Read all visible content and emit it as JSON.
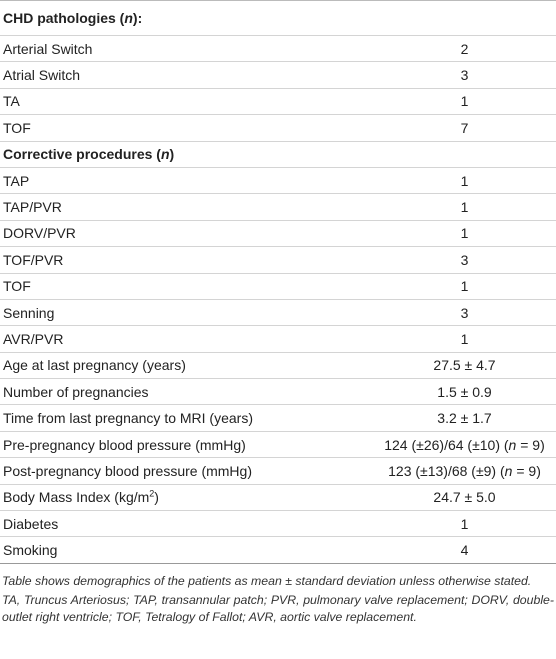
{
  "table": {
    "rows": [
      {
        "label": [
          {
            "text": "CHD pathologies ("
          },
          {
            "text": "n",
            "style": "italic"
          },
          {
            "text": "):"
          }
        ],
        "value": [],
        "heading": true
      },
      {
        "label": [
          {
            "text": "Arterial Switch"
          }
        ],
        "value": [
          {
            "text": "2"
          }
        ]
      },
      {
        "label": [
          {
            "text": "Atrial Switch"
          }
        ],
        "value": [
          {
            "text": "3"
          }
        ]
      },
      {
        "label": [
          {
            "text": "TA"
          }
        ],
        "value": [
          {
            "text": "1"
          }
        ]
      },
      {
        "label": [
          {
            "text": "TOF"
          }
        ],
        "value": [
          {
            "text": "7"
          }
        ]
      },
      {
        "label": [
          {
            "text": "Corrective procedures ("
          },
          {
            "text": "n",
            "style": "italic"
          },
          {
            "text": ")"
          }
        ],
        "value": [],
        "heading": true
      },
      {
        "label": [
          {
            "text": "TAP"
          }
        ],
        "value": [
          {
            "text": "1"
          }
        ]
      },
      {
        "label": [
          {
            "text": "TAP/PVR"
          }
        ],
        "value": [
          {
            "text": "1"
          }
        ]
      },
      {
        "label": [
          {
            "text": "DORV/PVR"
          }
        ],
        "value": [
          {
            "text": "1"
          }
        ]
      },
      {
        "label": [
          {
            "text": "TOF/PVR"
          }
        ],
        "value": [
          {
            "text": "3"
          }
        ]
      },
      {
        "label": [
          {
            "text": "TOF"
          }
        ],
        "value": [
          {
            "text": "1"
          }
        ]
      },
      {
        "label": [
          {
            "text": "Senning"
          }
        ],
        "value": [
          {
            "text": "3"
          }
        ]
      },
      {
        "label": [
          {
            "text": "AVR/PVR"
          }
        ],
        "value": [
          {
            "text": "1"
          }
        ]
      },
      {
        "label": [
          {
            "text": "Age at last pregnancy (years)"
          }
        ],
        "value": [
          {
            "text": "27.5 ± 4.7"
          }
        ]
      },
      {
        "label": [
          {
            "text": "Number of pregnancies"
          }
        ],
        "value": [
          {
            "text": "1.5 ± 0.9"
          }
        ]
      },
      {
        "label": [
          {
            "text": "Time from last pregnancy to MRI (years)"
          }
        ],
        "value": [
          {
            "text": "3.2 ± 1.7"
          }
        ]
      },
      {
        "label": [
          {
            "text": "Pre-pregnancy blood pressure (mmHg)"
          }
        ],
        "value": [
          {
            "text": "124 (±26)/64 (±10) ("
          },
          {
            "text": "n",
            "style": "italic"
          },
          {
            "text": " = 9)"
          }
        ]
      },
      {
        "label": [
          {
            "text": "Post-pregnancy blood pressure (mmHg)"
          }
        ],
        "value": [
          {
            "text": "123 (±13)/68 (±9) ("
          },
          {
            "text": "n",
            "style": "italic"
          },
          {
            "text": " = 9)"
          }
        ]
      },
      {
        "label": [
          {
            "text": "Body Mass Index (kg/m"
          },
          {
            "text": "2",
            "style": "sup"
          },
          {
            "text": ")"
          }
        ],
        "value": [
          {
            "text": "24.7 ± 5.0"
          }
        ]
      },
      {
        "label": [
          {
            "text": "Diabetes"
          }
        ],
        "value": [
          {
            "text": "1"
          }
        ]
      },
      {
        "label": [
          {
            "text": "Smoking"
          }
        ],
        "value": [
          {
            "text": "4"
          }
        ]
      }
    ]
  },
  "footnotes": [
    "Table shows demographics of the patients as mean ± standard deviation unless otherwise stated.",
    "TA, Truncus Arteriosus; TAP, transannular patch; PVR, pulmonary valve replacement; DORV, double-outlet right ventricle; TOF, Tetralogy of Fallot; AVR, aortic valve replacement."
  ]
}
